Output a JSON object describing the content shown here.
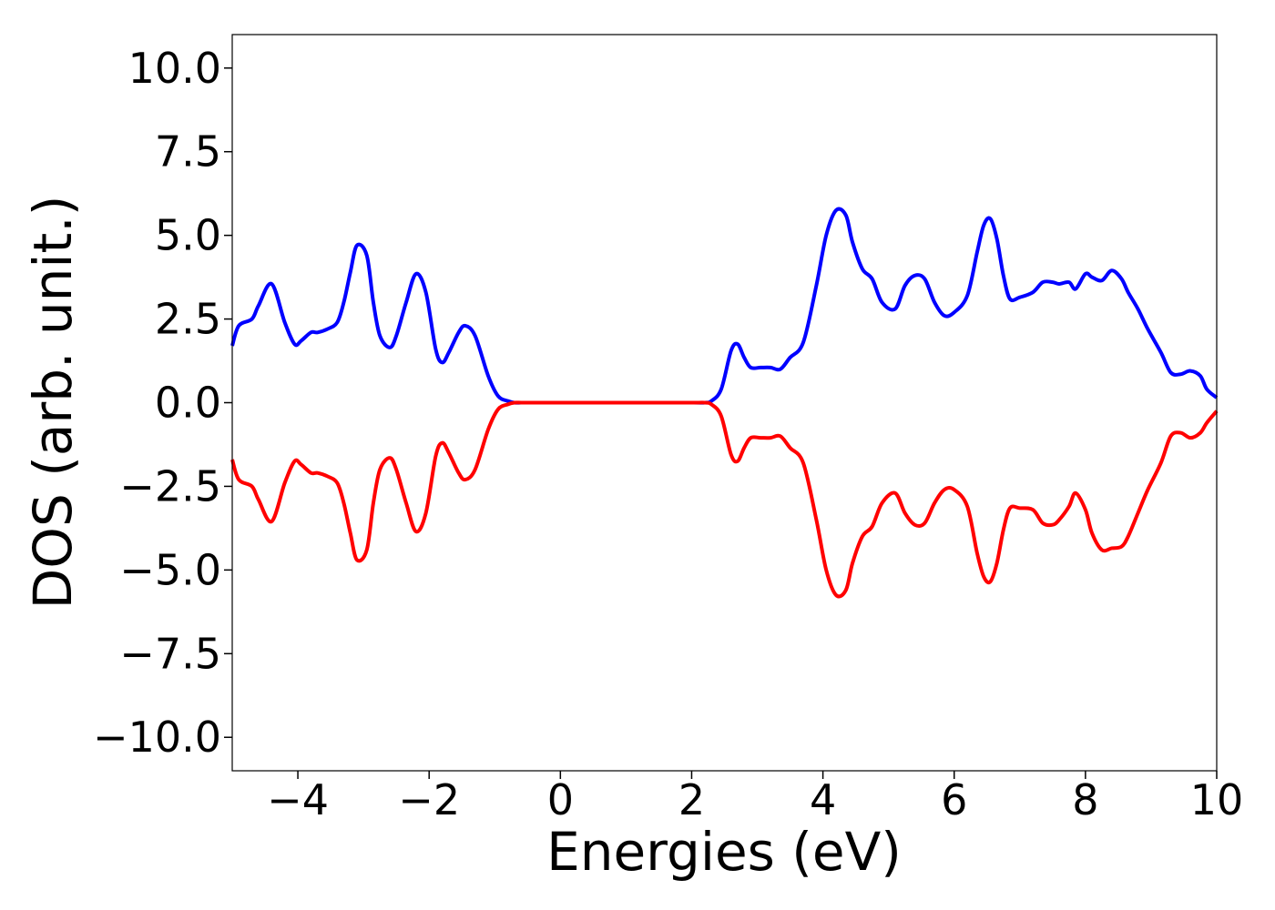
{
  "chart_data": {
    "type": "line",
    "title": "",
    "xlabel": "Energies (eV)",
    "ylabel": "DOS (arb. unit.)",
    "xlim": [
      -5,
      10
    ],
    "ylim": [
      -11,
      11
    ],
    "grid": false,
    "x_ticks": [
      -4,
      -2,
      0,
      2,
      4,
      6,
      8,
      10
    ],
    "x_tick_labels": [
      "−4",
      "−2",
      "0",
      "2",
      "4",
      "6",
      "8",
      "10"
    ],
    "y_ticks": [
      10,
      7.5,
      5,
      2.5,
      0,
      -2.5,
      -5,
      -7.5,
      -10
    ],
    "y_tick_labels": [
      "10.0",
      "7.5",
      "5.0",
      "2.5",
      "0.0",
      "−2.5",
      "−5.0",
      "−7.5",
      "−10.0"
    ],
    "series": [
      {
        "color": "#0000ff",
        "x": [
          -5.0,
          -4.9,
          -4.7,
          -4.6,
          -4.4,
          -4.2,
          -4.05,
          -3.95,
          -3.8,
          -3.7,
          -3.55,
          -3.4,
          -3.3,
          -3.2,
          -3.1,
          -2.95,
          -2.85,
          -2.75,
          -2.6,
          -2.5,
          -2.35,
          -2.2,
          -2.05,
          -1.9,
          -1.8,
          -1.7,
          -1.55,
          -1.45,
          -1.3,
          -1.1,
          -0.95,
          -0.8,
          -0.7,
          -0.6,
          -0.5,
          0.0,
          1.0,
          2.0,
          2.2,
          2.3,
          2.45,
          2.6,
          2.7,
          2.8,
          2.9,
          3.05,
          3.2,
          3.35,
          3.5,
          3.7,
          3.9,
          4.05,
          4.2,
          4.35,
          4.45,
          4.6,
          4.75,
          4.9,
          5.1,
          5.25,
          5.4,
          5.55,
          5.7,
          5.85,
          6.0,
          6.2,
          6.35,
          6.45,
          6.55,
          6.65,
          6.75,
          6.85,
          7.0,
          7.2,
          7.35,
          7.5,
          7.6,
          7.75,
          7.85,
          8.0,
          8.1,
          8.25,
          8.4,
          8.55,
          8.65,
          8.8,
          8.95,
          9.15,
          9.3,
          9.45,
          9.6,
          9.75,
          9.85,
          10.0
        ],
        "y": [
          1.7,
          2.3,
          2.5,
          2.9,
          3.55,
          2.4,
          1.75,
          1.85,
          2.1,
          2.1,
          2.2,
          2.4,
          3.0,
          3.9,
          4.7,
          4.4,
          3.0,
          2.0,
          1.65,
          2.0,
          3.0,
          3.85,
          3.3,
          1.6,
          1.2,
          1.5,
          2.1,
          2.3,
          2.0,
          0.8,
          0.2,
          0.05,
          0.0,
          0.0,
          0.0,
          0.0,
          0.0,
          0.0,
          0.0,
          0.05,
          0.4,
          1.55,
          1.75,
          1.35,
          1.05,
          1.05,
          1.05,
          1.0,
          1.35,
          1.8,
          3.5,
          5.0,
          5.75,
          5.6,
          4.8,
          4.0,
          3.7,
          3.0,
          2.8,
          3.5,
          3.8,
          3.7,
          3.0,
          2.6,
          2.7,
          3.2,
          4.5,
          5.3,
          5.5,
          4.9,
          3.8,
          3.1,
          3.15,
          3.3,
          3.6,
          3.6,
          3.55,
          3.6,
          3.4,
          3.85,
          3.75,
          3.65,
          3.95,
          3.7,
          3.3,
          2.8,
          2.2,
          1.5,
          0.9,
          0.85,
          0.95,
          0.8,
          0.4,
          0.15
        ]
      },
      {
        "color": "#ff0000",
        "x": [
          -5.0,
          -4.9,
          -4.7,
          -4.6,
          -4.4,
          -4.2,
          -4.05,
          -3.95,
          -3.8,
          -3.7,
          -3.55,
          -3.4,
          -3.3,
          -3.2,
          -3.1,
          -2.95,
          -2.85,
          -2.75,
          -2.6,
          -2.5,
          -2.35,
          -2.2,
          -2.05,
          -1.9,
          -1.8,
          -1.7,
          -1.55,
          -1.45,
          -1.3,
          -1.1,
          -0.95,
          -0.8,
          -0.7,
          -0.6,
          -0.5,
          0.0,
          1.0,
          2.0,
          2.2,
          2.3,
          2.45,
          2.6,
          2.7,
          2.8,
          2.9,
          3.05,
          3.2,
          3.35,
          3.5,
          3.7,
          3.9,
          4.05,
          4.2,
          4.35,
          4.45,
          4.6,
          4.75,
          4.9,
          5.1,
          5.25,
          5.4,
          5.55,
          5.7,
          5.85,
          6.0,
          6.2,
          6.35,
          6.45,
          6.55,
          6.65,
          6.75,
          6.85,
          7.0,
          7.2,
          7.35,
          7.5,
          7.6,
          7.75,
          7.85,
          8.0,
          8.1,
          8.25,
          8.4,
          8.55,
          8.65,
          8.8,
          8.95,
          9.15,
          9.3,
          9.45,
          9.6,
          9.75,
          9.85,
          10.0
        ],
        "y": [
          -1.7,
          -2.3,
          -2.5,
          -2.9,
          -3.55,
          -2.4,
          -1.75,
          -1.85,
          -2.1,
          -2.1,
          -2.2,
          -2.4,
          -3.0,
          -3.9,
          -4.7,
          -4.4,
          -3.0,
          -2.0,
          -1.65,
          -2.0,
          -3.0,
          -3.85,
          -3.3,
          -1.6,
          -1.2,
          -1.5,
          -2.1,
          -2.3,
          -2.0,
          -0.8,
          -0.2,
          -0.05,
          0.0,
          0.0,
          0.0,
          0.0,
          0.0,
          0.0,
          0.0,
          -0.05,
          -0.4,
          -1.55,
          -1.75,
          -1.35,
          -1.05,
          -1.05,
          -1.05,
          -1.0,
          -1.35,
          -1.8,
          -3.5,
          -5.0,
          -5.75,
          -5.6,
          -4.8,
          -4.0,
          -3.7,
          -3.0,
          -2.7,
          -3.3,
          -3.65,
          -3.6,
          -3.0,
          -2.6,
          -2.6,
          -3.1,
          -4.5,
          -5.2,
          -5.35,
          -4.8,
          -3.8,
          -3.15,
          -3.15,
          -3.2,
          -3.6,
          -3.65,
          -3.5,
          -3.1,
          -2.7,
          -3.2,
          -3.9,
          -4.4,
          -4.35,
          -4.3,
          -4.0,
          -3.3,
          -2.6,
          -1.8,
          -1.0,
          -0.9,
          -1.05,
          -0.9,
          -0.6,
          -0.25
        ]
      }
    ]
  }
}
